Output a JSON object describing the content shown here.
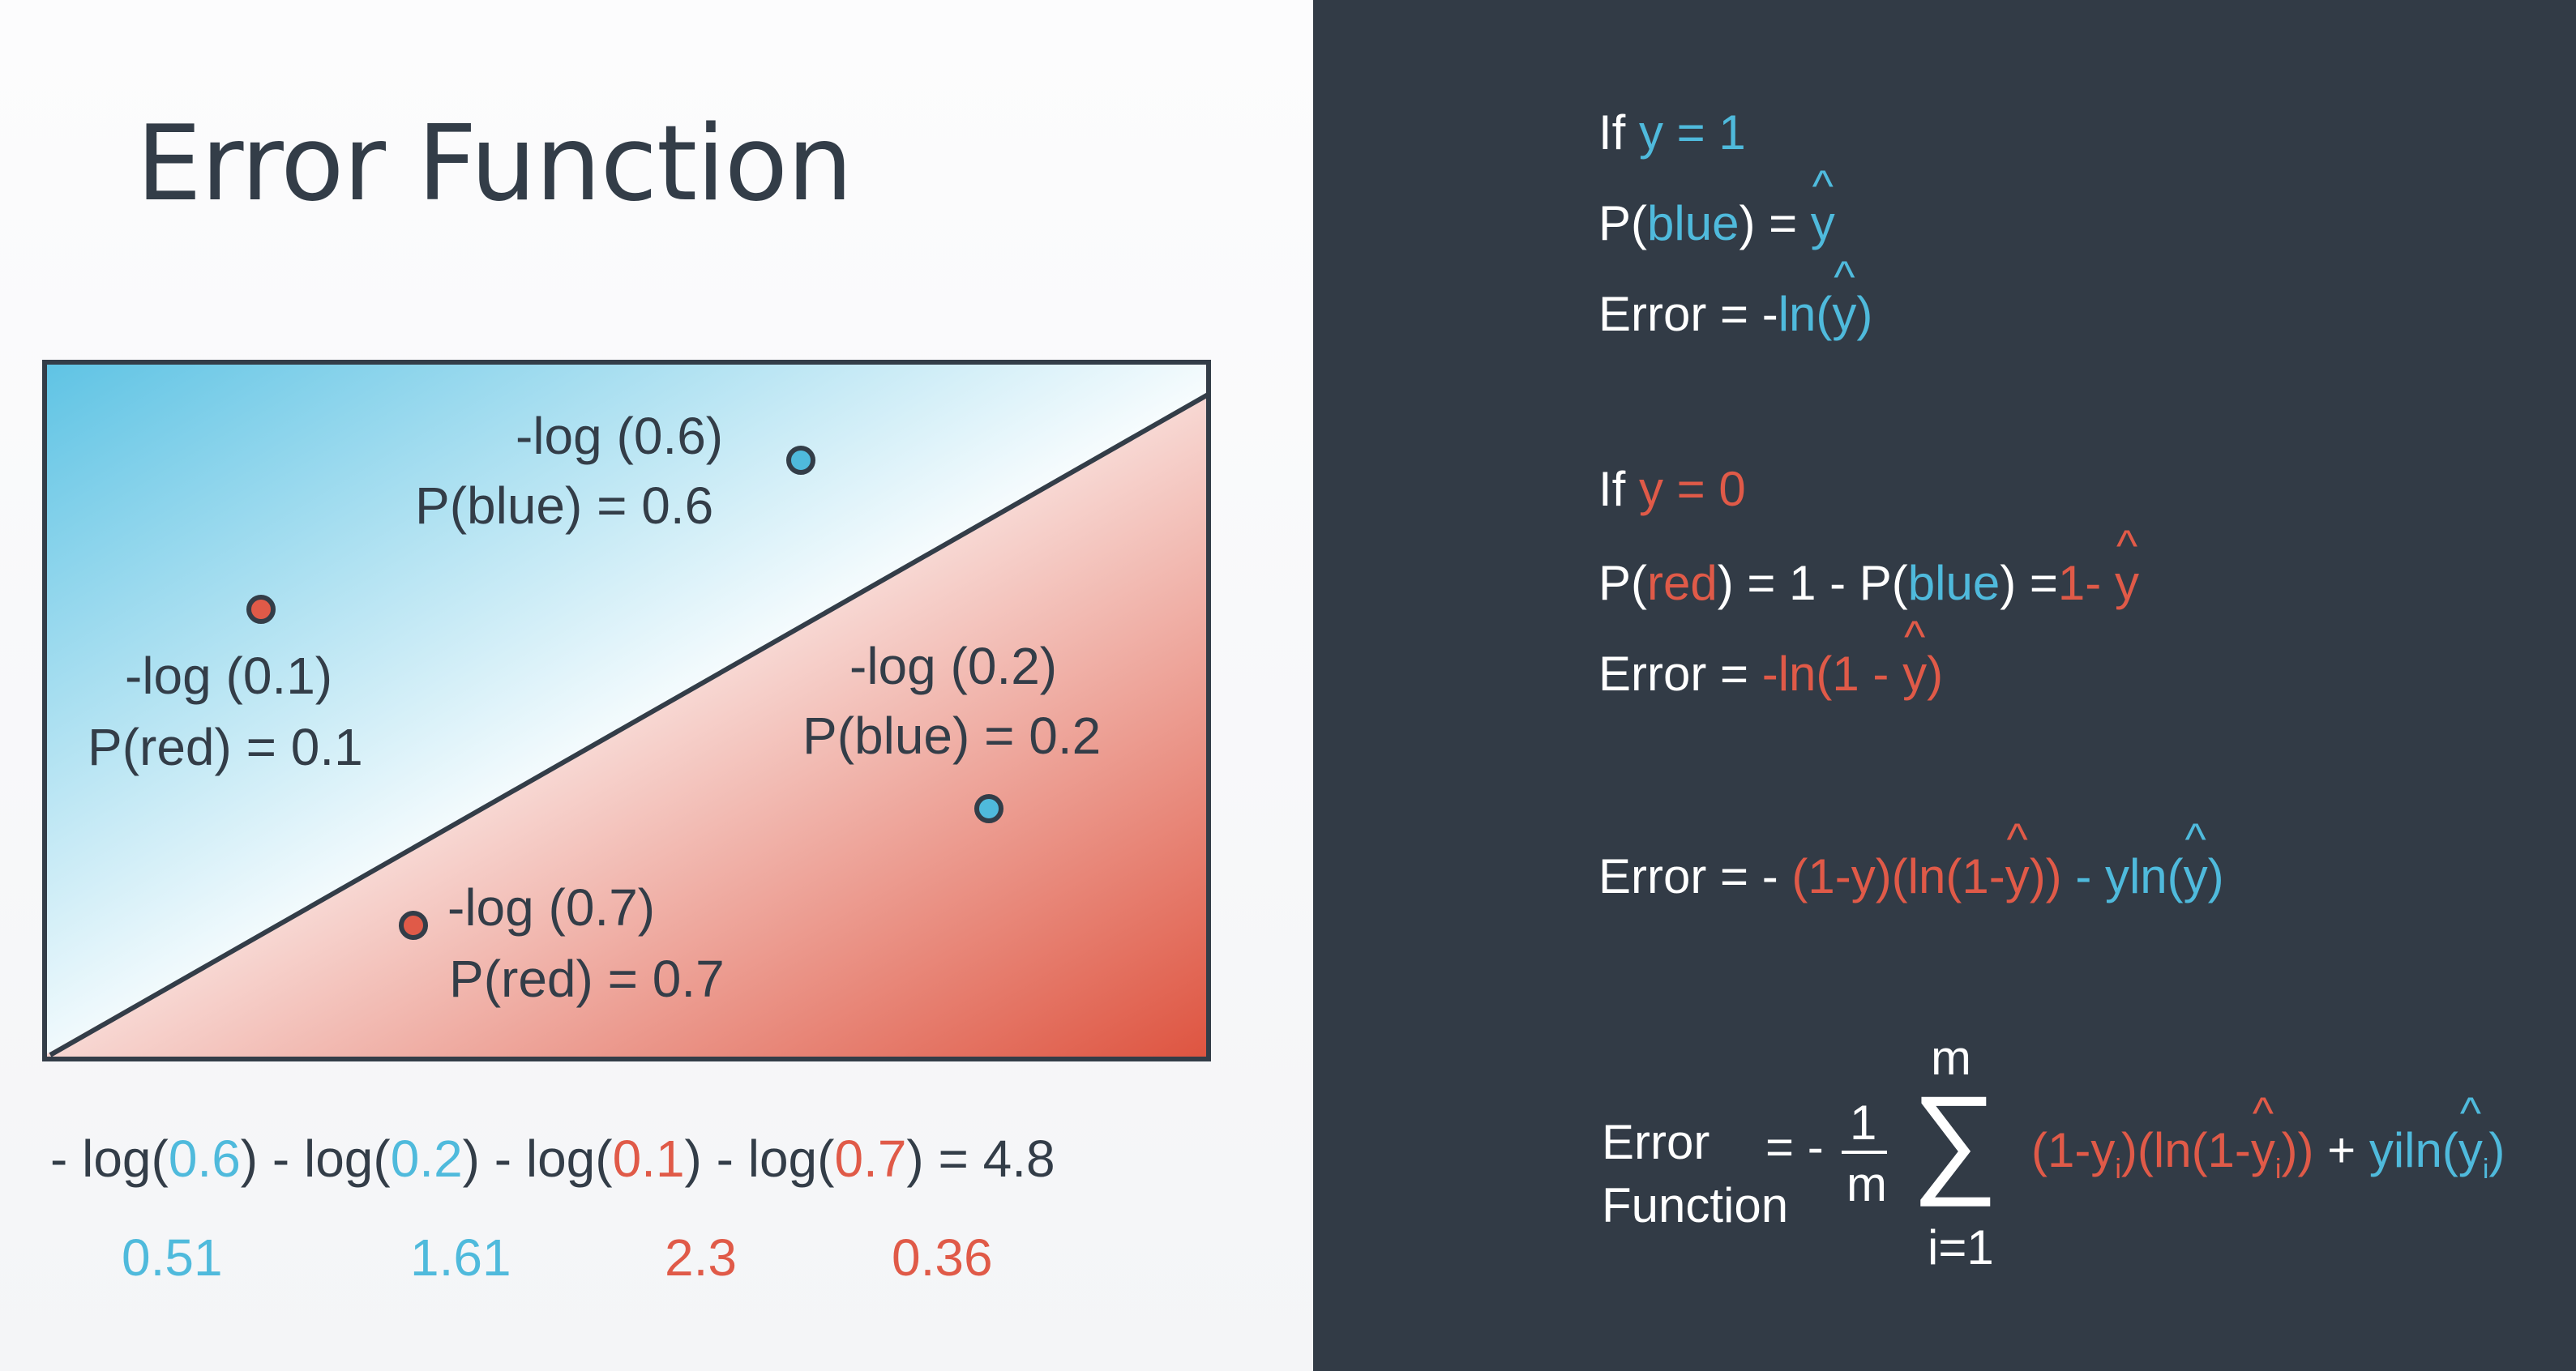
{
  "title": "Error Function",
  "diagram": {
    "points": [
      {
        "color": "blue",
        "log": "-log (0.6)",
        "prob": "P(blue) = 0.6"
      },
      {
        "color": "red",
        "log": "-log (0.1)",
        "prob": "P(red) = 0.1"
      },
      {
        "color": "blue",
        "log": "-log (0.2)",
        "prob": "P(blue) = 0.2"
      },
      {
        "color": "red",
        "log": "-log (0.7)",
        "prob": "P(red) = 0.7"
      }
    ]
  },
  "sum": {
    "parts": [
      {
        "prefix": "- log(",
        "value": "0.6",
        "suffix": ") "
      },
      {
        "prefix": "- log(",
        "value": "0.2",
        "suffix": ") "
      },
      {
        "prefix": "- log(",
        "value": "0.1",
        "suffix": ") "
      },
      {
        "prefix": "- log(",
        "value": "0.7",
        "suffix": ") "
      }
    ],
    "result": "= 4.8",
    "terms": [
      "0.51",
      "1.61",
      "2.3",
      "0.36"
    ]
  },
  "right": {
    "case1_if": "If ",
    "case1_cond": "y = 1",
    "p_blue_prefix": "P(",
    "p_blue_word": "blue",
    "p_blue_suffix": ") = ",
    "y": "y",
    "error_prefix": "Error = -",
    "ln_blue": "ln(",
    "close_paren": ")",
    "case2_if": "If ",
    "case2_cond": "y = 0",
    "p_red_prefix": "P(",
    "p_red_word": "red",
    "p_red_mid": ") = 1 - P(",
    "p_red_blue": "blue",
    "p_red_eq": ") =",
    "p_red_one_minus": "1- ",
    "error2_prefix": "Error = ",
    "error2_red": "-ln(1 - ",
    "combined_prefix": "Error = - ",
    "combined_red": "(1-y)(ln(1-",
    "combined_red_close": "))",
    "combined_blue": " - yln(",
    "ef_word1": "Error",
    "ef_word2": "Function",
    "ef_eq": "= -",
    "ef_one": "1",
    "ef_m": "m",
    "ef_sigma": "∑",
    "ef_top": "m",
    "ef_bottom": "i=1",
    "ef_red_a": "(1-y",
    "ef_sub_i": "i",
    "ef_red_b": ")(ln(1-",
    "ef_red_c": "))",
    "ef_plus": " + ",
    "ef_blue": "yiln(",
    "ef_blue_close": ")"
  }
}
